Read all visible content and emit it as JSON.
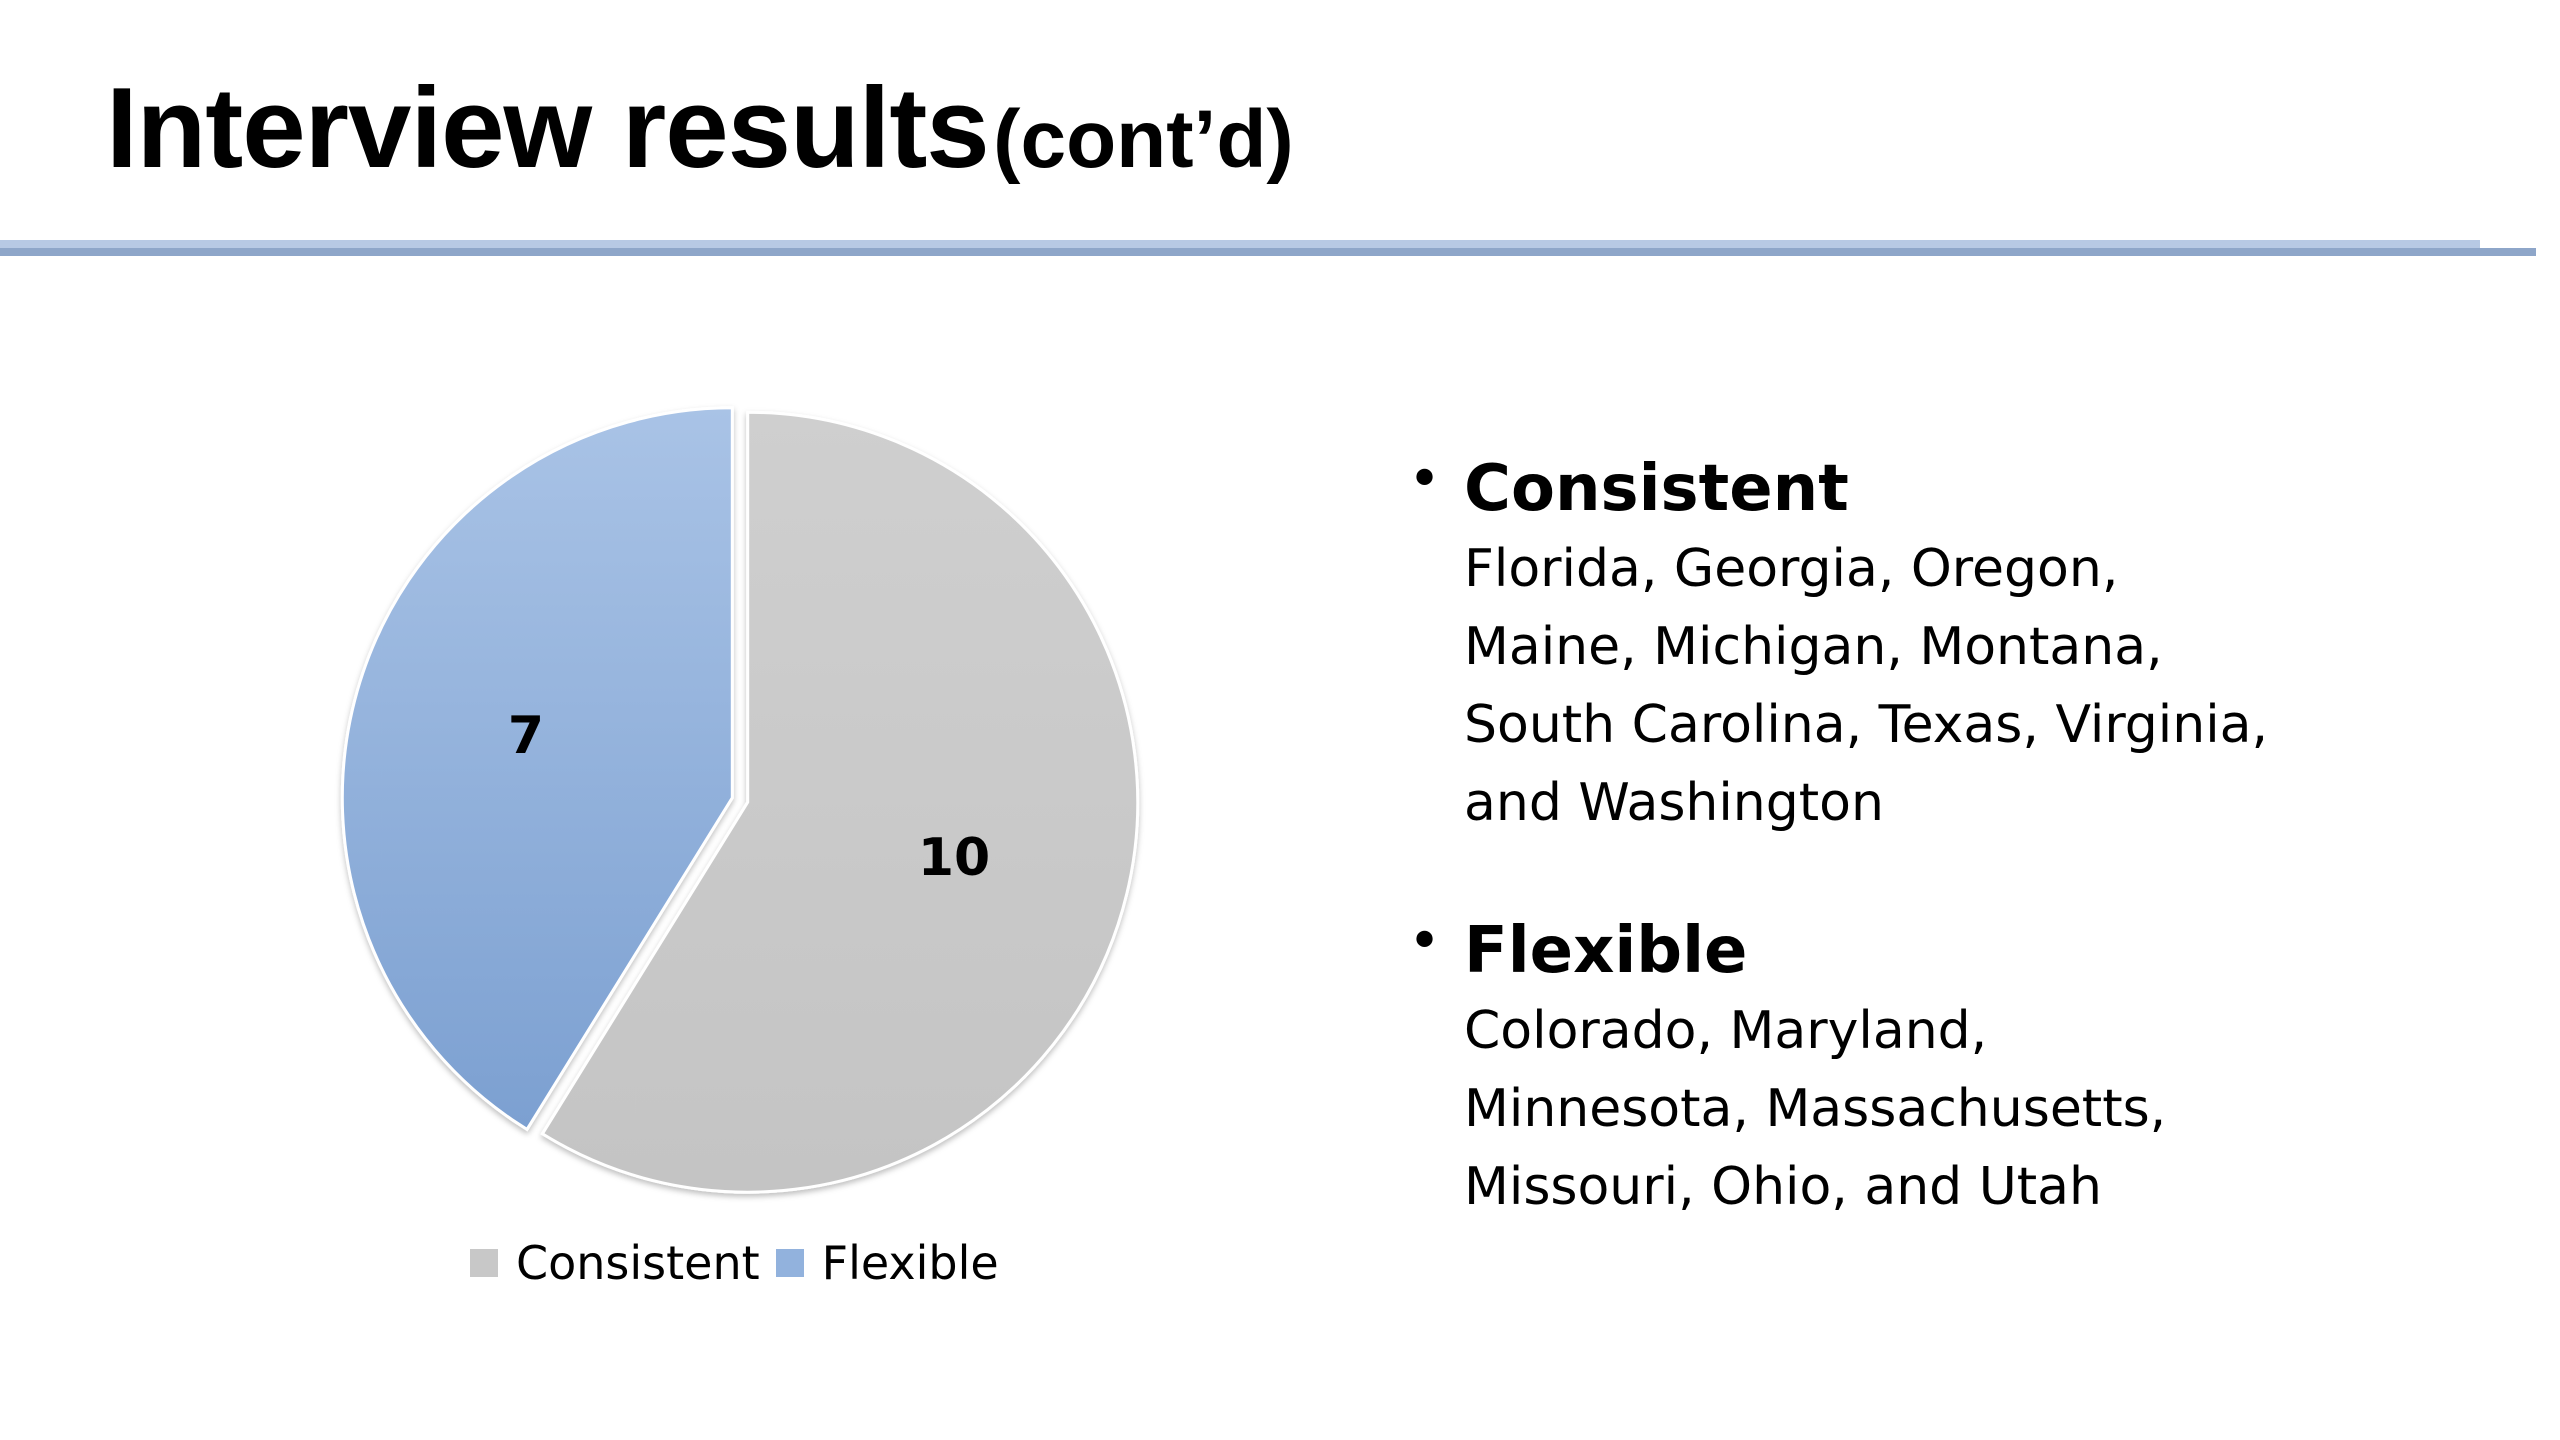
{
  "slide": {
    "title_main": "Interview results",
    "title_sub": "(cont’d)"
  },
  "chart_data": {
    "type": "pie",
    "categories": [
      "Consistent",
      "Flexible"
    ],
    "values": [
      10,
      7
    ],
    "data_labels": [
      "10",
      "7"
    ],
    "colors": [
      "#c8c8c8",
      "#92b2dd"
    ],
    "legend": "bottom"
  },
  "legend": {
    "items": [
      {
        "label": "Consistent",
        "color": "#c8c8c8"
      },
      {
        "label": "Flexible",
        "color": "#92b2dd"
      }
    ]
  },
  "bullets": [
    {
      "heading": "Consistent",
      "lines": [
        "Florida, Georgia, Oregon,",
        "Maine, Michigan, Montana,",
        "South Carolina, Texas, Virginia,",
        "and Washington"
      ]
    },
    {
      "heading": "Flexible",
      "lines": [
        "Colorado, Maryland,",
        "Minnesota, Massachusetts,",
        "Missouri, Ohio, and Utah"
      ]
    }
  ]
}
